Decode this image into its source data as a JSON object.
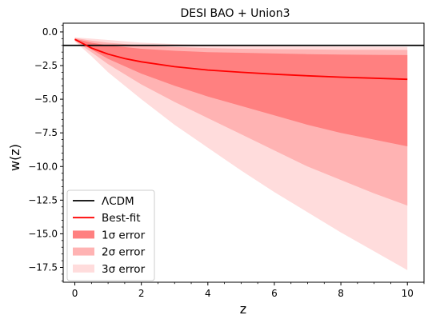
{
  "chart_data": {
    "type": "area",
    "title": "DESI BAO + Union3",
    "xlabel": "z",
    "ylabel": "w(z)",
    "xlim": [
      -0.35,
      10.5
    ],
    "ylim": [
      -18.6,
      0.65
    ],
    "xticks": [
      0,
      2,
      4,
      6,
      8,
      10
    ],
    "yticks": [
      0.0,
      -2.5,
      -5.0,
      -7.5,
      -10.0,
      -12.5,
      -15.0,
      -17.5
    ],
    "xtick_labels": [
      "0",
      "2",
      "4",
      "6",
      "8",
      "10"
    ],
    "ytick_labels": [
      "0.0",
      "−2.5",
      "−5.0",
      "−7.5",
      "−10.0",
      "−12.5",
      "−15.0",
      "−17.5"
    ],
    "grid": false,
    "legend_position": "lower-left",
    "series": [
      {
        "name": "ΛCDM",
        "kind": "hline",
        "value": -1.0,
        "color": "#000000"
      },
      {
        "name": "Best-fit",
        "kind": "line",
        "color": "#ff0000",
        "x": [
          0,
          0.5,
          1,
          1.5,
          2,
          3,
          4,
          5,
          6,
          7,
          8,
          9,
          10
        ],
        "y": [
          -0.55,
          -1.2,
          -1.65,
          -1.98,
          -2.22,
          -2.58,
          -2.83,
          -3.0,
          -3.14,
          -3.26,
          -3.36,
          -3.44,
          -3.52
        ]
      },
      {
        "name": "1σ error",
        "kind": "band",
        "color": "#ff8080",
        "x": [
          0,
          0.5,
          1,
          2,
          3,
          4,
          5,
          6,
          7,
          8,
          9,
          10
        ],
        "lower": [
          -0.6,
          -1.3,
          -2.0,
          -3.1,
          -4.0,
          -4.8,
          -5.5,
          -6.2,
          -6.9,
          -7.5,
          -8.0,
          -8.5
        ],
        "upper": [
          -0.5,
          -0.8,
          -1.0,
          -1.25,
          -1.4,
          -1.5,
          -1.55,
          -1.6,
          -1.65,
          -1.68,
          -1.7,
          -1.72
        ]
      },
      {
        "name": "2σ error",
        "kind": "band",
        "color": "#ffb3b3",
        "x": [
          0,
          0.5,
          1,
          2,
          3,
          4,
          5,
          6,
          7,
          8,
          9,
          10
        ],
        "lower": [
          -0.65,
          -1.5,
          -2.4,
          -3.9,
          -5.2,
          -6.4,
          -7.6,
          -8.8,
          -10.0,
          -11.0,
          -12.0,
          -12.9
        ],
        "upper": [
          -0.45,
          -0.65,
          -0.8,
          -1.0,
          -1.12,
          -1.2,
          -1.25,
          -1.28,
          -1.3,
          -1.32,
          -1.33,
          -1.34
        ]
      },
      {
        "name": "3σ error",
        "kind": "band",
        "color": "#ffdcdc",
        "x": [
          0,
          0.5,
          1,
          2,
          3,
          4,
          5,
          6,
          7,
          8,
          9,
          10
        ],
        "lower": [
          -0.7,
          -1.8,
          -3.0,
          -5.0,
          -6.9,
          -8.6,
          -10.3,
          -11.9,
          -13.4,
          -14.9,
          -16.3,
          -17.7
        ],
        "upper": [
          -0.4,
          -0.5,
          -0.6,
          -0.8,
          -0.9,
          -0.98,
          -1.02,
          -1.05,
          -1.07,
          -1.08,
          -1.09,
          -1.1
        ]
      }
    ]
  }
}
